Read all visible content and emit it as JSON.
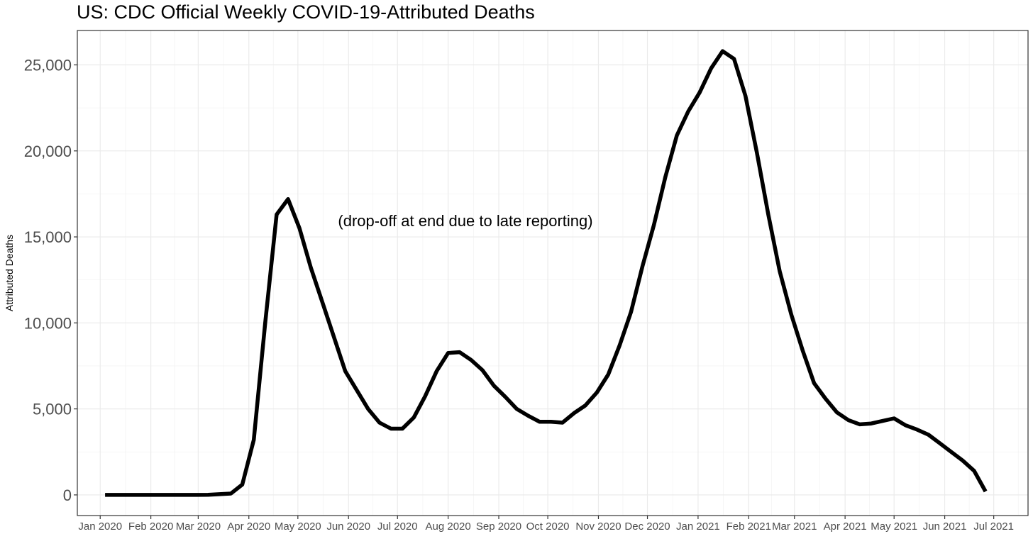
{
  "chart_data": {
    "type": "line",
    "title": "US: CDC Official Weekly COVID-19-Attributed Deaths",
    "xlabel": "",
    "ylabel": "Attributed Deaths",
    "annotation": "(drop-off at end due to late reporting)",
    "ylim": [
      -1200,
      27000
    ],
    "xlim": [
      "2019-12-18",
      "2021-07-22"
    ],
    "grid": true,
    "legend": "none",
    "line_color": "#000000",
    "y_ticks": [
      0,
      5000,
      10000,
      15000,
      20000,
      25000
    ],
    "y_tick_labels": [
      "0",
      "5,000",
      "10,000",
      "15,000",
      "20,000",
      "25,000"
    ],
    "x_ticks": [
      "2020-01-01",
      "2020-02-01",
      "2020-03-01",
      "2020-04-01",
      "2020-05-01",
      "2020-06-01",
      "2020-07-01",
      "2020-08-01",
      "2020-09-01",
      "2020-10-01",
      "2020-11-01",
      "2020-12-01",
      "2021-01-01",
      "2021-02-01",
      "2021-03-01",
      "2021-04-01",
      "2021-05-01",
      "2021-06-01",
      "2021-07-01"
    ],
    "x_tick_labels": [
      "Jan 2020",
      "Feb 2020",
      "Mar 2020",
      "Apr 2020",
      "May 2020",
      "Jun 2020",
      "Jul 2020",
      "Aug 2020",
      "Sep 2020",
      "Oct 2020",
      "Nov 2020",
      "Dec 2020",
      "Jan 2021",
      "Feb 2021",
      "Mar 2021",
      "Apr 2021",
      "May 2021",
      "Jun 2021",
      "Jul 2021"
    ],
    "series": [
      {
        "x": [
          "2020-01-04",
          "2020-01-11",
          "2020-01-18",
          "2020-01-25",
          "2020-02-01",
          "2020-02-08",
          "2020-02-15",
          "2020-02-22",
          "2020-02-29",
          "2020-03-07",
          "2020-03-14",
          "2020-03-21",
          "2020-03-28",
          "2020-04-04",
          "2020-04-11",
          "2020-04-18",
          "2020-04-25",
          "2020-05-02",
          "2020-05-09",
          "2020-05-16",
          "2020-05-23",
          "2020-05-30",
          "2020-06-06",
          "2020-06-13",
          "2020-06-20",
          "2020-06-27",
          "2020-07-04",
          "2020-07-11",
          "2020-07-18",
          "2020-07-25",
          "2020-08-01",
          "2020-08-08",
          "2020-08-15",
          "2020-08-22",
          "2020-08-29",
          "2020-09-05",
          "2020-09-12",
          "2020-09-19",
          "2020-09-26",
          "2020-10-03",
          "2020-10-10",
          "2020-10-17",
          "2020-10-24",
          "2020-10-31",
          "2020-11-07",
          "2020-11-14",
          "2020-11-21",
          "2020-11-28",
          "2020-12-05",
          "2020-12-12",
          "2020-12-19",
          "2020-12-26",
          "2021-01-02",
          "2021-01-09",
          "2021-01-16",
          "2021-01-23",
          "2021-01-30",
          "2021-02-06",
          "2021-02-13",
          "2021-02-20",
          "2021-02-27",
          "2021-03-06",
          "2021-03-13",
          "2021-03-20",
          "2021-03-27",
          "2021-04-03",
          "2021-04-10",
          "2021-04-17",
          "2021-04-24",
          "2021-05-01",
          "2021-05-08",
          "2021-05-15",
          "2021-05-22",
          "2021-05-29",
          "2021-06-05",
          "2021-06-12",
          "2021-06-19",
          "2021-06-26"
        ],
        "values": [
          0,
          0,
          0,
          0,
          0,
          0,
          0,
          0,
          0,
          10,
          40,
          80,
          600,
          3200,
          10000,
          16300,
          17200,
          15500,
          13200,
          11200,
          9200,
          7200,
          6100,
          5000,
          4200,
          3850,
          3850,
          4500,
          5750,
          7200,
          8250,
          8300,
          7850,
          7250,
          6350,
          5700,
          5000,
          4600,
          4250,
          4250,
          4200,
          4750,
          5200,
          5950,
          7000,
          8700,
          10650,
          13300,
          15700,
          18500,
          20900,
          22300,
          23400,
          24800,
          25800,
          25350,
          23200,
          19900,
          16300,
          13000,
          10500,
          8400,
          6500,
          5600,
          4800,
          4350,
          4100,
          4150,
          4300,
          4450,
          4050,
          3800,
          3500,
          3000,
          2500,
          2000,
          1400,
          200
        ]
      }
    ]
  }
}
